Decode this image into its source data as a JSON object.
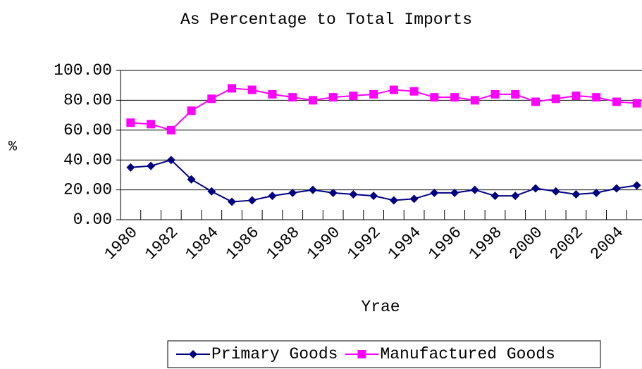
{
  "chart_data": {
    "type": "line",
    "title": "As Percentage to Total Imports",
    "x_label": "Yrae",
    "y_label": "%",
    "categories": [
      "1980",
      null,
      "1982",
      null,
      "1984",
      null,
      "1986",
      null,
      "1988",
      null,
      "1990",
      null,
      "1992",
      null,
      "1994",
      null,
      "1996",
      null,
      "1998",
      null,
      "2000",
      null,
      "2002",
      null,
      "2004",
      null
    ],
    "series": [
      {
        "name": "Primary Goods",
        "color": "#000080",
        "marker": "diamond",
        "values": [
          35,
          36,
          40,
          27,
          19,
          12,
          13,
          16,
          18,
          20,
          18,
          17,
          16,
          13,
          14,
          18,
          18,
          20,
          16,
          16,
          21,
          19,
          17,
          18,
          21,
          23
        ]
      },
      {
        "name": "Manufactured Goods",
        "color": "#ff00ff",
        "marker": "square",
        "values": [
          65,
          64,
          60,
          73,
          81,
          88,
          87,
          84,
          82,
          80,
          82,
          83,
          84,
          87,
          86,
          82,
          82,
          80,
          84,
          84,
          79,
          81,
          83,
          82,
          79,
          78
        ]
      }
    ],
    "ylim": [
      0,
      100
    ],
    "yticks": [
      {
        "value": 0,
        "label": "0.00"
      },
      {
        "value": 20,
        "label": "20.00"
      },
      {
        "value": 40,
        "label": "40.00"
      },
      {
        "value": 60,
        "label": "60.00"
      },
      {
        "value": 80,
        "label": "80.00"
      },
      {
        "value": 100,
        "label": "100.00"
      }
    ],
    "grid": true,
    "legend": "bottom"
  }
}
